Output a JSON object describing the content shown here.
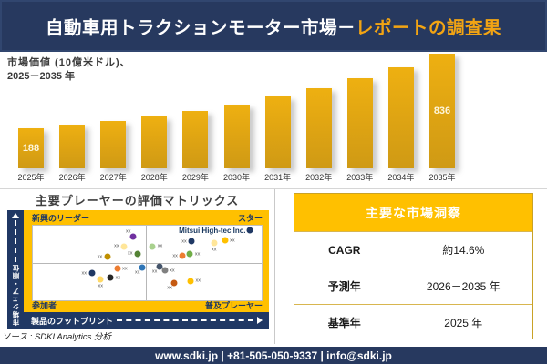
{
  "banner": {
    "title_main": "自動車用トラクションモーター市場－",
    "title_accent": "レポートの調査果"
  },
  "chart_caption": {
    "line1": "市場価値 (10億米ドル)、",
    "line2": "2025－2035 年"
  },
  "chart_data": [
    {
      "type": "bar",
      "title": "市場価値 (10億米ドル)、2025－2035 年",
      "ylabel": "市場価値 (10億米ドル)",
      "categories": [
        "2025年",
        "2026年",
        "2027年",
        "2028年",
        "2029年",
        "2030年",
        "2031年",
        "2032年",
        "2033年",
        "2034年",
        "2035年"
      ],
      "values": [
        188,
        218,
        253,
        294,
        342,
        397,
        461,
        535,
        621,
        721,
        836
      ],
      "value_labels": [
        "188",
        null,
        null,
        null,
        null,
        null,
        null,
        null,
        null,
        null,
        "836"
      ],
      "bar_color": "#dda313",
      "grid": false
    },
    {
      "type": "scatter",
      "title": "主要プレーヤーの評価マトリックス",
      "xlabel": "製品のフットプリント",
      "ylabel": "市場シェア・順位",
      "quadrants": {
        "top_left": "新興のリーダー",
        "top_right": "スター",
        "bottom_left": "参加者",
        "bottom_right": "普及プレーヤー"
      },
      "highlight_company": "Mitsui High-tec Inc.",
      "points": [
        {
          "x_pct": 43.8,
          "y_pct": 14.4,
          "color": "#7030a0",
          "label": "xx",
          "label_pos": "above-left"
        },
        {
          "x_pct": 39.9,
          "y_pct": 27.6,
          "color": "#ffe699",
          "label": "xx",
          "label_pos": "left"
        },
        {
          "x_pct": 45.8,
          "y_pct": 37.2,
          "color": "#548235",
          "label": "xx",
          "label_pos": "left"
        },
        {
          "x_pct": 32.5,
          "y_pct": 41.5,
          "color": "#bf8f00",
          "label": "xx",
          "label_pos": "left"
        },
        {
          "x_pct": 36.9,
          "y_pct": 57.6,
          "color": "#ed7d31",
          "label": "xx",
          "label_pos": "right"
        },
        {
          "x_pct": 47.8,
          "y_pct": 55.9,
          "color": "#2e75b6",
          "label": "xx",
          "label_pos": "below-left"
        },
        {
          "x_pct": 25.7,
          "y_pct": 64.0,
          "color": "#1f3864",
          "label": "xx",
          "label_pos": "left"
        },
        {
          "x_pct": 33.9,
          "y_pct": 69.6,
          "color": "#262626",
          "label": "xx",
          "label_pos": "right"
        },
        {
          "x_pct": 29.6,
          "y_pct": 71.5,
          "color": "#ffd966",
          "label": "xx",
          "label_pos": "below"
        },
        {
          "x_pct": 52.3,
          "y_pct": 27.6,
          "color": "#a9d18e",
          "label": "xx",
          "label_pos": "right"
        },
        {
          "x_pct": 69.4,
          "y_pct": 20.8,
          "color": "#1f3864",
          "label": "xx",
          "label_pos": "left"
        },
        {
          "x_pct": 79.2,
          "y_pct": 22.8,
          "color": "#ffe699",
          "label": "xx",
          "label_pos": "below"
        },
        {
          "x_pct": 83.9,
          "y_pct": 19.6,
          "color": "#ffc000",
          "label": "xx",
          "label_pos": "right"
        },
        {
          "x_pct": 94.9,
          "y_pct": 6.0,
          "color": "#1f3864",
          "label": "",
          "label_pos": "none"
        },
        {
          "x_pct": 65.5,
          "y_pct": 40.8,
          "color": "#ed7d31",
          "label": "xx",
          "label_pos": "left"
        },
        {
          "x_pct": 68.7,
          "y_pct": 38.4,
          "color": "#70ad47",
          "label": "xx",
          "label_pos": "right"
        },
        {
          "x_pct": 55.3,
          "y_pct": 54.7,
          "color": "#44546a",
          "label": "xx",
          "label_pos": "below-left"
        },
        {
          "x_pct": 57.6,
          "y_pct": 60.0,
          "color": "#808080",
          "label": "xx",
          "label_pos": "right"
        },
        {
          "x_pct": 61.9,
          "y_pct": 76.8,
          "color": "#c55a11",
          "label": "xx",
          "label_pos": "below-left"
        },
        {
          "x_pct": 68.9,
          "y_pct": 74.0,
          "color": "#ffc000",
          "label": "xx",
          "label_pos": "right"
        }
      ]
    }
  ],
  "insights": {
    "title": "主要な市場洞察",
    "rows": [
      {
        "label": "CAGR",
        "value": "約14.6%"
      },
      {
        "label": "予測年",
        "value": "2026－2035 年"
      },
      {
        "label": "基準年",
        "value": "2025 年"
      }
    ]
  },
  "source": "ソース : SDKI Analytics 分析",
  "footer": "www.sdki.jp | +81-505-050-9337 | info@sdki.jp",
  "colors": {
    "banner_navy": "#27395f",
    "accent_orange": "#f2a413",
    "bar_gold": "#dda313",
    "matrix_gold": "#ffc000",
    "axis_navy": "#203864",
    "table_border_gold": "#c9a227",
    "value_label_cream": "#fdf6dc"
  }
}
